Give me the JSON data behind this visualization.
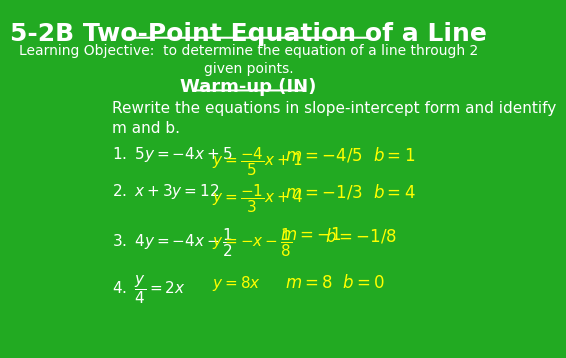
{
  "bg_color": "#22aa22",
  "title": "5-2B Two-Point Equation of a Line",
  "title_color": "#ffffff",
  "title_fontsize": 18,
  "objective": "Learning Objective:  to determine the equation of a line through 2\ngiven points.",
  "objective_color": "#ffffff",
  "objective_fontsize": 10,
  "warmup": "Warm-up (IN)",
  "warmup_color": "#ffffff",
  "warmup_fontsize": 13,
  "instruction": "Rewrite the equations in slope-intercept form and identify\nm and b.",
  "instruction_color": "#ffffff",
  "instruction_fontsize": 11,
  "text_color": "#ffffff",
  "yellow_color": "#ffff00",
  "eq_fontsize": 11
}
